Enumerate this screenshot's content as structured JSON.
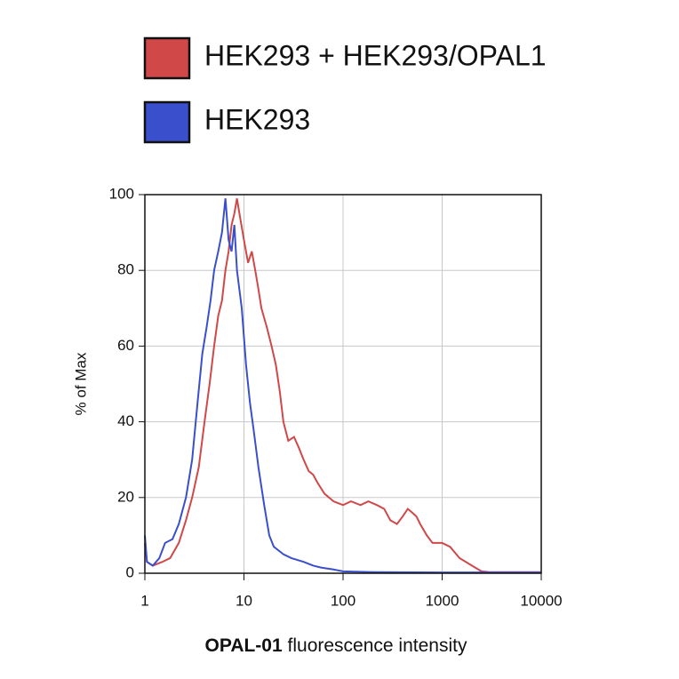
{
  "chart_data": {
    "type": "line",
    "xlabel": {
      "bold": "OPAL-01",
      "text": "fluorescence intensity"
    },
    "ylabel": "% of Max",
    "log_x": true,
    "grid": true,
    "xlim": [
      1,
      10000
    ],
    "xticks": [
      1,
      10,
      100,
      1000,
      10000
    ],
    "ylim": [
      0,
      100
    ],
    "yticks": [
      0,
      20,
      40,
      60,
      80,
      100
    ],
    "series": [
      {
        "name": "HEK293 + HEK293/OPAL1",
        "color": "#d04848",
        "x": [
          1.0,
          1.05,
          1.2,
          1.5,
          1.8,
          2.2,
          2.6,
          3.0,
          3.5,
          4.0,
          4.5,
          5.0,
          5.5,
          6.0,
          6.5,
          7.0,
          7.5,
          8.0,
          8.5,
          9.0,
          10,
          11,
          12,
          13,
          14,
          15,
          17,
          19,
          21,
          23,
          25,
          28,
          32,
          36,
          40,
          45,
          50,
          55,
          65,
          80,
          100,
          120,
          150,
          180,
          220,
          260,
          300,
          350,
          400,
          450,
          500,
          550,
          600,
          700,
          800,
          1000,
          1200,
          1500,
          2000,
          2500,
          3000,
          10000
        ],
        "values": [
          8,
          3,
          2,
          3,
          4,
          8,
          14,
          20,
          28,
          40,
          50,
          60,
          68,
          72,
          80,
          85,
          92,
          95,
          99,
          95,
          88,
          82,
          85,
          80,
          75,
          70,
          65,
          60,
          55,
          48,
          40,
          35,
          36,
          33,
          30,
          27,
          26,
          24,
          21,
          19,
          18,
          19,
          18,
          19,
          18,
          17,
          14,
          13,
          15,
          17,
          16,
          15,
          13,
          10,
          8,
          8,
          7,
          4,
          2,
          0.5,
          0.3,
          0.3
        ]
      },
      {
        "name": "HEK293",
        "color": "#3a4fcc",
        "x": [
          1.0,
          1.05,
          1.2,
          1.4,
          1.6,
          1.9,
          2.2,
          2.6,
          3.0,
          3.4,
          3.8,
          4.2,
          4.6,
          5.0,
          5.5,
          6.0,
          6.5,
          7.0,
          7.5,
          8.0,
          8.5,
          9.5,
          10.5,
          11.5,
          12.5,
          14,
          16,
          18,
          20,
          25,
          30,
          40,
          50,
          60,
          80,
          100,
          200,
          1000,
          10000
        ],
        "values": [
          10,
          3,
          2,
          4,
          8,
          9,
          13,
          20,
          30,
          45,
          58,
          65,
          72,
          80,
          85,
          90,
          99,
          88,
          85,
          92,
          80,
          70,
          55,
          45,
          38,
          28,
          18,
          10,
          7,
          5,
          4,
          3,
          2,
          1.5,
          1,
          0.5,
          0.3,
          0.2,
          0.2
        ]
      }
    ]
  }
}
